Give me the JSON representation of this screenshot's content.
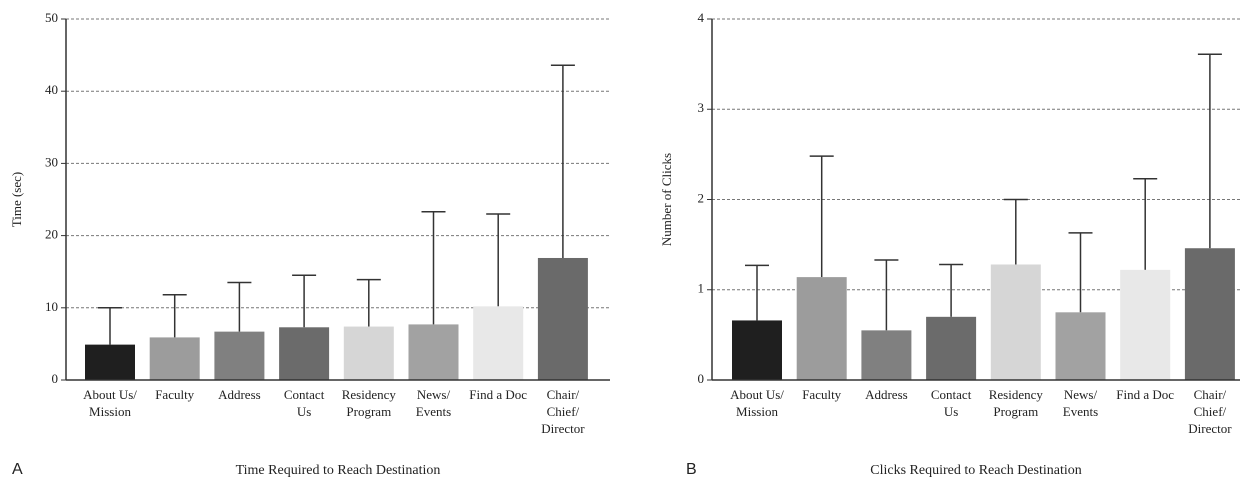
{
  "chart_data": [
    {
      "type": "bar",
      "panel": "A",
      "title": "Time Required to Reach Destination",
      "ylabel": "Time (sec)",
      "categories": [
        [
          "About Us/",
          "Mission"
        ],
        [
          "Faculty"
        ],
        [
          "Address"
        ],
        [
          "Contact",
          "Us"
        ],
        [
          "Residency",
          "Program"
        ],
        [
          "News/",
          "Events"
        ],
        [
          "Find a Doc"
        ],
        [
          "Chair/",
          "Chief/",
          "Director"
        ]
      ],
      "values": [
        4.9,
        5.9,
        6.7,
        7.3,
        7.4,
        7.7,
        10.2,
        16.9
      ],
      "errors": [
        5.1,
        5.9,
        6.8,
        7.2,
        6.5,
        15.6,
        12.8,
        26.7
      ],
      "colors": [
        "#1f1f1f",
        "#9c9c9c",
        "#808080",
        "#6b6b6b",
        "#d6d6d6",
        "#a2a2a2",
        "#e8e8e8",
        "#6a6a6a"
      ],
      "ylim": [
        0,
        50
      ],
      "yticks": [
        0,
        10,
        20,
        30,
        40,
        50
      ],
      "grid": true
    },
    {
      "type": "bar",
      "panel": "B",
      "title": "Clicks Required to Reach Destination",
      "ylabel": "Number of Clicks",
      "categories": [
        [
          "About Us/",
          "Mission"
        ],
        [
          "Faculty"
        ],
        [
          "Address"
        ],
        [
          "Contact",
          "Us"
        ],
        [
          "Residency",
          "Program"
        ],
        [
          "News/",
          "Events"
        ],
        [
          "Find a Doc"
        ],
        [
          "Chair/",
          "Chief/",
          "Director"
        ]
      ],
      "values": [
        0.66,
        1.14,
        0.55,
        0.7,
        1.28,
        0.75,
        1.22,
        1.46
      ],
      "errors": [
        0.61,
        1.34,
        0.78,
        0.58,
        0.72,
        0.88,
        1.01,
        2.15
      ],
      "colors": [
        "#1f1f1f",
        "#9c9c9c",
        "#808080",
        "#6b6b6b",
        "#d6d6d6",
        "#a2a2a2",
        "#e8e8e8",
        "#6a6a6a"
      ],
      "ylim": [
        0,
        4
      ],
      "yticks": [
        0,
        1,
        2,
        3,
        4
      ],
      "grid": true
    }
  ]
}
